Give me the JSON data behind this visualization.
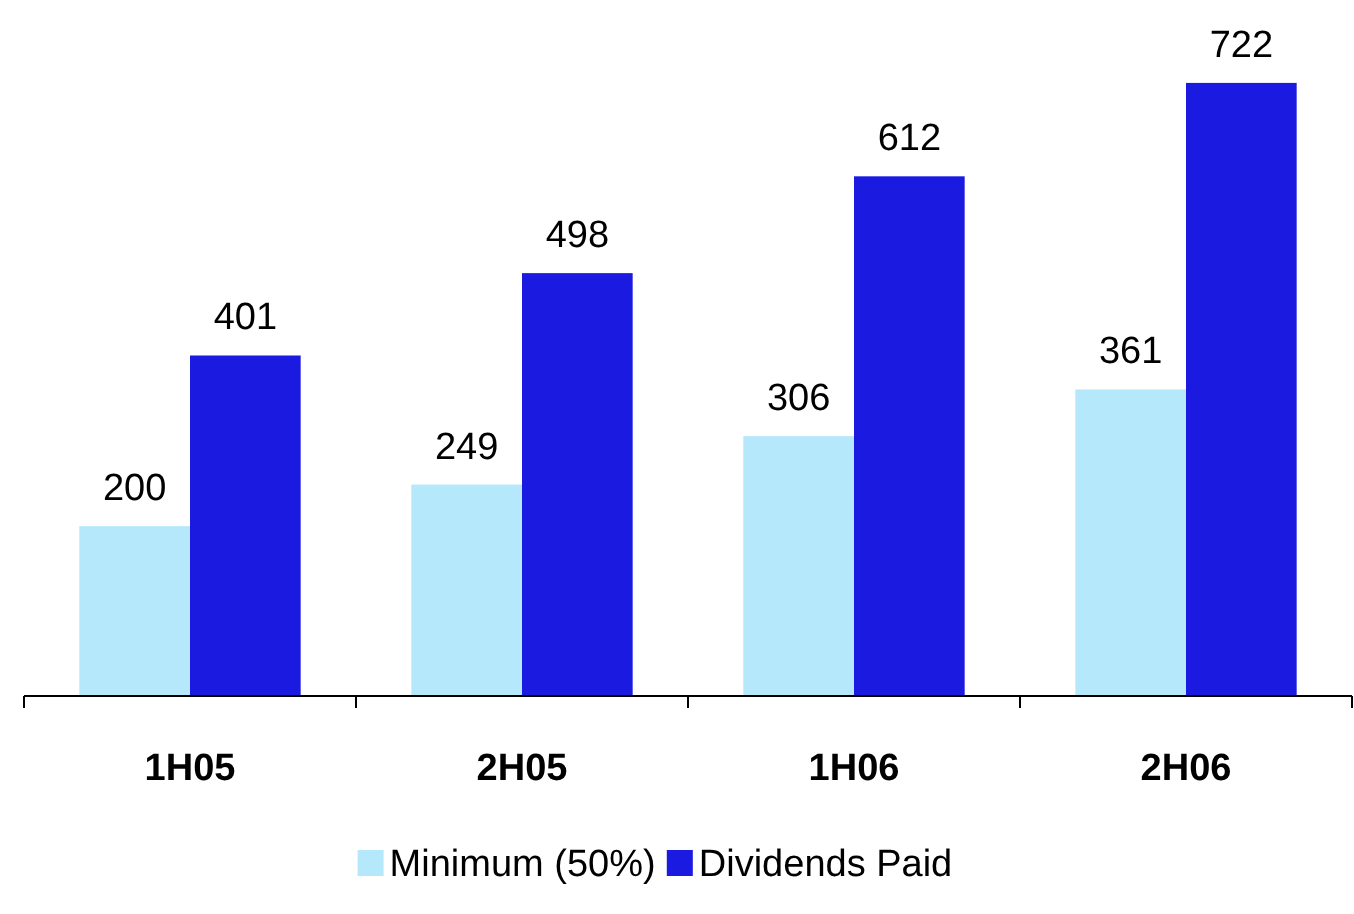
{
  "chart_data": {
    "type": "bar",
    "categories": [
      "1H05",
      "2H05",
      "1H06",
      "2H06"
    ],
    "series": [
      {
        "name": "Minimum (50%)",
        "color": "#b4e8fa",
        "values": [
          200,
          249,
          306,
          361
        ]
      },
      {
        "name": "Dividends Paid",
        "color": "#1a1ae0",
        "values": [
          401,
          498,
          612,
          722
        ]
      }
    ],
    "data_labels": true,
    "legend": "bottom",
    "grid": false
  }
}
